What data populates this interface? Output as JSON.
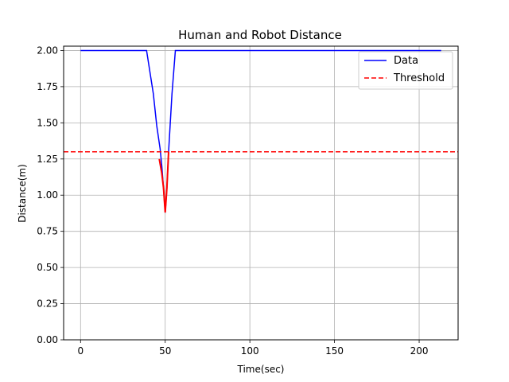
{
  "chart_data": {
    "type": "line",
    "title": "Human and Robot Distance",
    "xlabel": "Time(sec)",
    "ylabel": "Distance(m)",
    "xlim": [
      -10,
      223
    ],
    "ylim": [
      0,
      2.03
    ],
    "xticks": [
      0,
      50,
      100,
      150,
      200
    ],
    "yticks": [
      0.0,
      0.25,
      0.5,
      0.75,
      1.0,
      1.25,
      1.5,
      1.75,
      2.0
    ],
    "xtick_labels": [
      "0",
      "50",
      "100",
      "150",
      "200"
    ],
    "ytick_labels": [
      "0.00",
      "0.25",
      "0.50",
      "0.75",
      "1.00",
      "1.25",
      "1.50",
      "1.75",
      "2.00"
    ],
    "grid": true,
    "legend_position": "top-right",
    "series": [
      {
        "name": "Data",
        "color": "#0000ff",
        "style": "solid",
        "x": [
          0,
          39,
          41,
          43,
          45,
          47,
          48,
          49,
          50,
          51,
          52,
          53,
          54,
          56,
          213
        ],
        "y": [
          2.0,
          2.0,
          1.85,
          1.7,
          1.48,
          1.32,
          1.2,
          1.05,
          0.88,
          1.05,
          1.3,
          1.5,
          1.7,
          2.0,
          2.0
        ]
      },
      {
        "name": "Threshold",
        "color": "#ff0000",
        "style": "dashed",
        "x": [
          -10,
          223
        ],
        "y": [
          1.3,
          1.3
        ]
      }
    ],
    "highlight": {
      "color": "#ff0000",
      "x": [
        46.5,
        48,
        49,
        50,
        51,
        52
      ],
      "y": [
        1.25,
        1.15,
        1.05,
        0.88,
        1.05,
        1.3
      ]
    }
  }
}
